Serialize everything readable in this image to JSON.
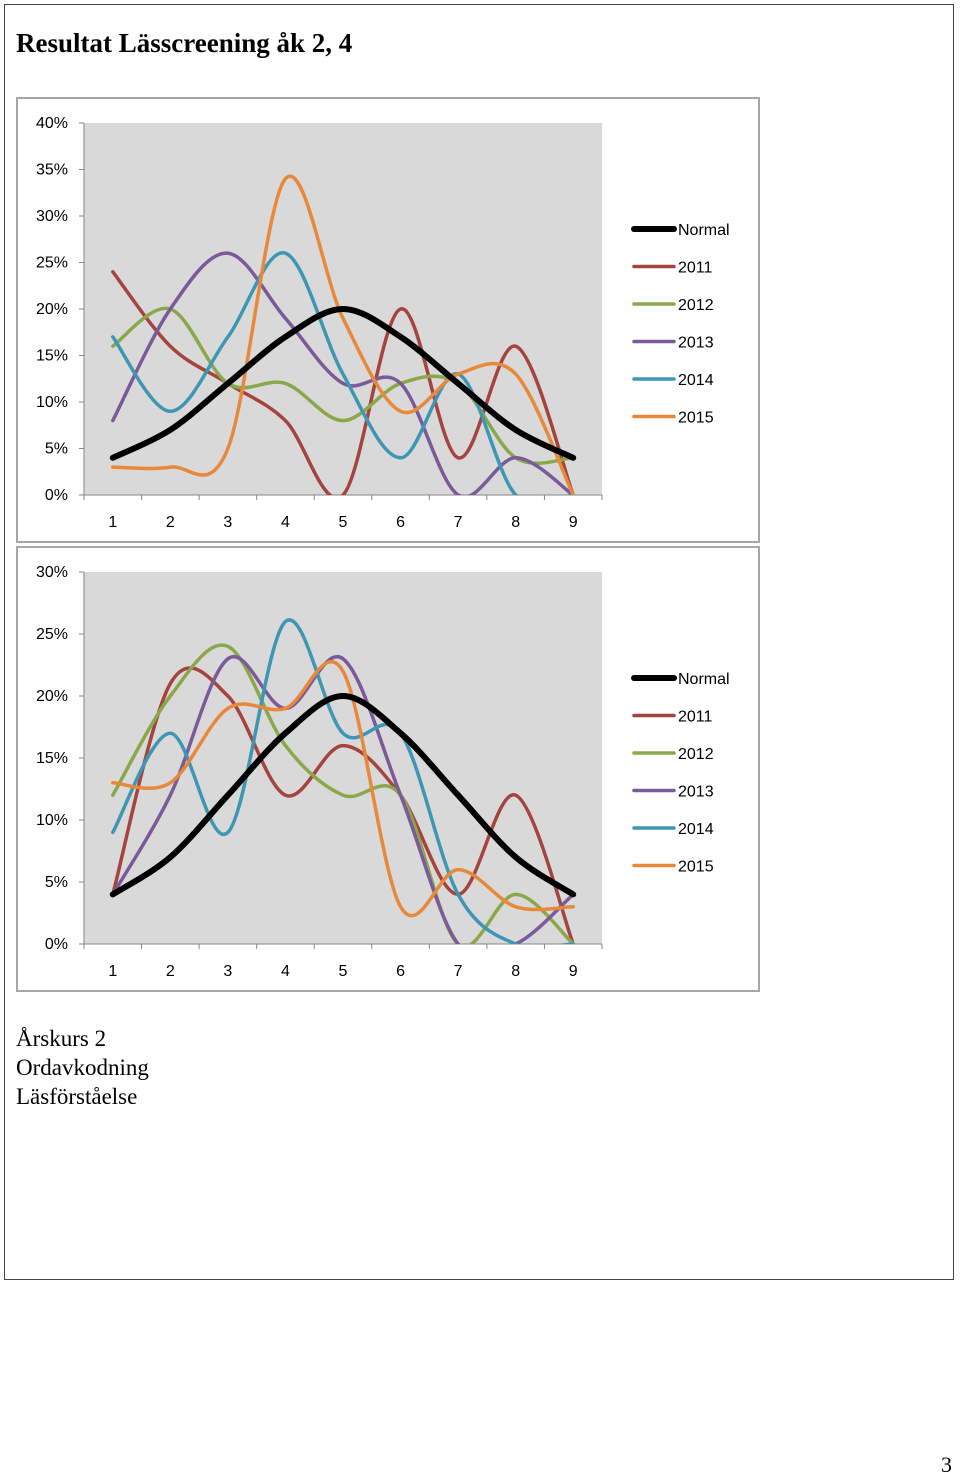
{
  "page": {
    "title": "Resultat Lässcreening åk 2, 4",
    "caption_lines": [
      "Årskurs 2",
      "Ordavkodning",
      "Läsförståelse"
    ],
    "page_number": "3"
  },
  "colors": {
    "Normal": "#000000",
    "2011": "#a5443f",
    "2012": "#8aa84a",
    "2013": "#7a5a98",
    "2014": "#3d97b3",
    "2015": "#e7883a",
    "plot_bg": "#d9d9d9"
  },
  "chart_data": [
    {
      "type": "line",
      "title": "",
      "xlabel": "",
      "ylabel": "",
      "x": [
        1,
        2,
        3,
        4,
        5,
        6,
        7,
        8,
        9
      ],
      "ylim": [
        0,
        0.4
      ],
      "yticks": [
        0,
        0.05,
        0.1,
        0.15,
        0.2,
        0.25,
        0.3,
        0.35,
        0.4
      ],
      "ytick_labels": [
        "0%",
        "5%",
        "10%",
        "15%",
        "20%",
        "25%",
        "30%",
        "35%",
        "40%"
      ],
      "grid": false,
      "smooth": true,
      "legend": "right",
      "series": [
        {
          "name": "Normal",
          "values": [
            0.04,
            0.07,
            0.12,
            0.17,
            0.2,
            0.17,
            0.12,
            0.07,
            0.04
          ]
        },
        {
          "name": "2011",
          "values": [
            0.24,
            0.16,
            0.12,
            0.08,
            0.0,
            0.2,
            0.04,
            0.16,
            0.0
          ]
        },
        {
          "name": "2012",
          "values": [
            0.16,
            0.2,
            0.12,
            0.12,
            0.08,
            0.12,
            0.12,
            0.04,
            0.04
          ]
        },
        {
          "name": "2013",
          "values": [
            0.08,
            0.2,
            0.26,
            0.19,
            0.12,
            0.12,
            0.0,
            0.04,
            0.0
          ]
        },
        {
          "name": "2014",
          "values": [
            0.17,
            0.09,
            0.17,
            0.26,
            0.13,
            0.04,
            0.13,
            0.0,
            0.0
          ]
        },
        {
          "name": "2015",
          "values": [
            0.03,
            0.03,
            0.05,
            0.34,
            0.19,
            0.09,
            0.13,
            0.13,
            0.0
          ]
        }
      ]
    },
    {
      "type": "line",
      "title": "",
      "xlabel": "",
      "ylabel": "",
      "x": [
        1,
        2,
        3,
        4,
        5,
        6,
        7,
        8,
        9
      ],
      "ylim": [
        0,
        0.3
      ],
      "yticks": [
        0,
        0.05,
        0.1,
        0.15,
        0.2,
        0.25,
        0.3
      ],
      "ytick_labels": [
        "0%",
        "5%",
        "10%",
        "15%",
        "20%",
        "25%",
        "30%"
      ],
      "grid": false,
      "smooth": true,
      "legend": "right",
      "series": [
        {
          "name": "Normal",
          "values": [
            0.04,
            0.07,
            0.12,
            0.17,
            0.2,
            0.17,
            0.12,
            0.07,
            0.04
          ]
        },
        {
          "name": "2011",
          "values": [
            0.04,
            0.21,
            0.2,
            0.12,
            0.16,
            0.12,
            0.04,
            0.12,
            0.0
          ]
        },
        {
          "name": "2012",
          "values": [
            0.12,
            0.2,
            0.24,
            0.16,
            0.12,
            0.12,
            0.0,
            0.04,
            0.0
          ]
        },
        {
          "name": "2013",
          "values": [
            0.04,
            0.12,
            0.23,
            0.19,
            0.23,
            0.12,
            0.0,
            0.0,
            0.04
          ]
        },
        {
          "name": "2014",
          "values": [
            0.09,
            0.17,
            0.09,
            0.26,
            0.17,
            0.17,
            0.04,
            0.0,
            0.0
          ]
        },
        {
          "name": "2015",
          "values": [
            0.13,
            0.13,
            0.19,
            0.19,
            0.22,
            0.03,
            0.06,
            0.03,
            0.03
          ]
        }
      ]
    }
  ]
}
